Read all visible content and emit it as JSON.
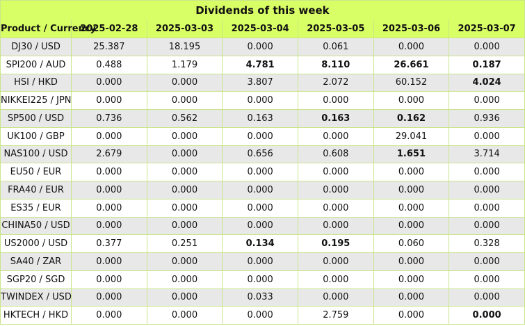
{
  "title": "Dividends of this week",
  "columns": [
    "Product / Currency",
    "2025-02-28",
    "2025-03-03",
    "2025-03-04",
    "2025-03-05",
    "2025-03-06",
    "2025-03-07"
  ],
  "rows": [
    {
      "product": "DJ30 / USD",
      "values": [
        "25.387",
        "18.195",
        "0.000",
        "0.061",
        "0.000",
        "0.000"
      ],
      "bold": [
        false,
        false,
        false,
        false,
        false,
        false
      ]
    },
    {
      "product": "SPI200 / AUD",
      "values": [
        "0.488",
        "1.179",
        "4.781",
        "8.110",
        "26.661",
        "0.187"
      ],
      "bold": [
        false,
        false,
        true,
        true,
        true,
        true
      ]
    },
    {
      "product": "HSI / HKD",
      "values": [
        "0.000",
        "0.000",
        "3.807",
        "2.072",
        "60.152",
        "4.024"
      ],
      "bold": [
        false,
        false,
        false,
        false,
        false,
        true
      ]
    },
    {
      "product": "NIKKEI225 / JPN",
      "values": [
        "0.000",
        "0.000",
        "0.000",
        "0.000",
        "0.000",
        "0.000"
      ],
      "bold": [
        false,
        false,
        false,
        false,
        false,
        false
      ]
    },
    {
      "product": "SP500 / USD",
      "values": [
        "0.736",
        "0.562",
        "0.163",
        "0.163",
        "0.162",
        "0.936"
      ],
      "bold": [
        false,
        false,
        false,
        true,
        true,
        false
      ]
    },
    {
      "product": "UK100 / GBP",
      "values": [
        "0.000",
        "0.000",
        "0.000",
        "0.000",
        "29.041",
        "0.000"
      ],
      "bold": [
        false,
        false,
        false,
        false,
        false,
        false
      ]
    },
    {
      "product": "NAS100 / USD",
      "values": [
        "2.679",
        "0.000",
        "0.656",
        "0.608",
        "1.651",
        "3.714"
      ],
      "bold": [
        false,
        false,
        false,
        false,
        true,
        false
      ]
    },
    {
      "product": "EU50 / EUR",
      "values": [
        "0.000",
        "0.000",
        "0.000",
        "0.000",
        "0.000",
        "0.000"
      ],
      "bold": [
        false,
        false,
        false,
        false,
        false,
        false
      ]
    },
    {
      "product": "FRA40 / EUR",
      "values": [
        "0.000",
        "0.000",
        "0.000",
        "0.000",
        "0.000",
        "0.000"
      ],
      "bold": [
        false,
        false,
        false,
        false,
        false,
        false
      ]
    },
    {
      "product": "ES35 / EUR",
      "values": [
        "0.000",
        "0.000",
        "0.000",
        "0.000",
        "0.000",
        "0.000"
      ],
      "bold": [
        false,
        false,
        false,
        false,
        false,
        false
      ]
    },
    {
      "product": "CHINA50 / USD",
      "values": [
        "0.000",
        "0.000",
        "0.000",
        "0.000",
        "0.000",
        "0.000"
      ],
      "bold": [
        false,
        false,
        false,
        false,
        false,
        false
      ]
    },
    {
      "product": "US2000 / USD",
      "values": [
        "0.377",
        "0.251",
        "0.134",
        "0.195",
        "0.060",
        "0.328"
      ],
      "bold": [
        false,
        false,
        true,
        true,
        false,
        false
      ]
    },
    {
      "product": "SA40 / ZAR",
      "values": [
        "0.000",
        "0.000",
        "0.000",
        "0.000",
        "0.000",
        "0.000"
      ],
      "bold": [
        false,
        false,
        false,
        false,
        false,
        false
      ]
    },
    {
      "product": "SGP20 / SGD",
      "values": [
        "0.000",
        "0.000",
        "0.000",
        "0.000",
        "0.000",
        "0.000"
      ],
      "bold": [
        false,
        false,
        false,
        false,
        false,
        false
      ]
    },
    {
      "product": "TWINDEX / USD",
      "values": [
        "0.000",
        "0.000",
        "0.033",
        "0.000",
        "0.000",
        "0.000"
      ],
      "bold": [
        false,
        false,
        false,
        false,
        false,
        false
      ]
    },
    {
      "product": "HKTECH / HKD",
      "values": [
        "0.000",
        "0.000",
        "0.000",
        "2.759",
        "0.000",
        "0.000"
      ],
      "bold": [
        false,
        false,
        false,
        false,
        false,
        true
      ]
    }
  ],
  "colors": {
    "header_bg": "#d9ff66",
    "row_alt_bg": "#e8e8e8",
    "border": "#c9e58a"
  }
}
